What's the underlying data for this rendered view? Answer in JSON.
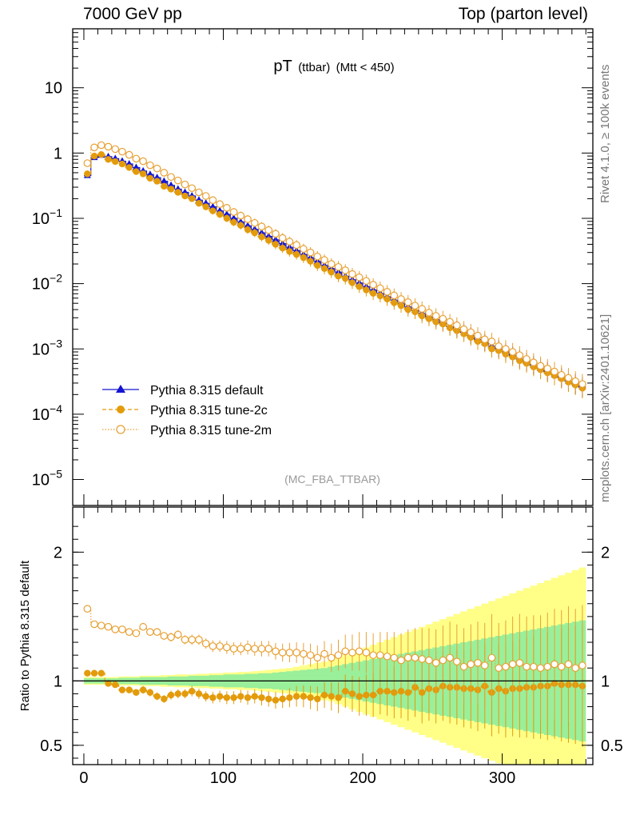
{
  "header": {
    "left": "7000 GeV pp",
    "right": "Top (parton level)"
  },
  "side_labels": {
    "rivet": "Rivet 4.1.0, ≥ 100k events",
    "mcplots": "mcplots.cern.ch [arXiv:2401.10621]"
  },
  "colors": {
    "default": "#1414d2",
    "tune2c": "#e39b0b",
    "tune2m": "#e7a135",
    "band_yellow": "#ffff88",
    "band_green": "#9aef9a"
  },
  "chart_data": [
    {
      "type": "line",
      "panel": "main",
      "title": "pT",
      "title_sub": "(ttbar)",
      "title_cut": "(Mtt < 450)",
      "watermark": "(MC_FBA_TTBAR)",
      "xlabel": "",
      "ylabel": "",
      "xlim": [
        -8,
        365
      ],
      "ylim": [
        4e-06,
        80
      ],
      "yscale": "log",
      "ytick_values": [
        1e-05,
        0.0001,
        0.001,
        0.01,
        0.1,
        1,
        10
      ],
      "ytick_labels": [
        {
          "base": "10",
          "exp": "−5"
        },
        {
          "base": "10",
          "exp": "−4"
        },
        {
          "base": "10",
          "exp": "−3"
        },
        {
          "base": "10",
          "exp": "−2"
        },
        {
          "base": "10",
          "exp": "−1"
        },
        {
          "base": "1",
          "exp": ""
        },
        {
          "base": "10",
          "exp": ""
        }
      ],
      "legend": [
        {
          "label": "Pythia 8.315 default",
          "style": "triangle-solid"
        },
        {
          "label": "Pythia 8.315 tune-2c",
          "style": "circle-dashed"
        },
        {
          "label": "Pythia 8.315 tune-2m",
          "style": "open-circle-dotted"
        }
      ],
      "x": [
        2.5,
        7.5,
        12.5,
        17.5,
        22.5,
        27.5,
        32.5,
        37.5,
        42.5,
        47.5,
        52.5,
        57.5,
        62.5,
        67.5,
        72.5,
        77.5,
        82.5,
        87.5,
        92.5,
        97.5,
        102.5,
        107.5,
        112.5,
        117.5,
        122.5,
        127.5,
        132.5,
        137.5,
        142.5,
        147.5,
        152.5,
        157.5,
        162.5,
        167.5,
        172.5,
        177.5,
        182.5,
        187.5,
        192.5,
        197.5,
        202.5,
        207.5,
        212.5,
        217.5,
        222.5,
        227.5,
        232.5,
        237.5,
        242.5,
        247.5,
        252.5,
        257.5,
        262.5,
        267.5,
        272.5,
        277.5,
        282.5,
        287.5,
        292.5,
        297.5,
        302.5,
        307.5,
        312.5,
        317.5,
        322.5,
        327.5,
        332.5,
        337.5,
        342.5,
        347.5,
        352.5,
        357.5
      ],
      "series": [
        {
          "name": "Pythia 8.315 default",
          "values": [
            0.45,
            0.85,
            0.92,
            0.88,
            0.82,
            0.75,
            0.68,
            0.6,
            0.53,
            0.47,
            0.42,
            0.37,
            0.32,
            0.28,
            0.25,
            0.22,
            0.19,
            0.17,
            0.15,
            0.13,
            0.115,
            0.1,
            0.088,
            0.077,
            0.068,
            0.06,
            0.053,
            0.047,
            0.041,
            0.036,
            0.032,
            0.028,
            0.025,
            0.022,
            0.019,
            0.017,
            0.015,
            0.013,
            0.0115,
            0.0102,
            0.009,
            0.008,
            0.0071,
            0.0063,
            0.0056,
            0.005,
            0.0044,
            0.0039,
            0.0035,
            0.0031,
            0.0028,
            0.0025,
            0.0022,
            0.002,
            0.0018,
            0.0016,
            0.0014,
            0.00125,
            0.0011,
            0.001,
            0.0009,
            0.0008,
            0.0007,
            0.00063,
            0.00056,
            0.0005,
            0.00045,
            0.0004,
            0.00036,
            0.00032,
            0.00029,
            0.00026
          ]
        },
        {
          "name": "Pythia 8.315 tune-2c",
          "values": [
            0.48,
            0.9,
            0.95,
            0.8,
            0.74,
            0.68,
            0.6,
            0.52,
            0.48,
            0.41,
            0.37,
            0.31,
            0.28,
            0.25,
            0.22,
            0.2,
            0.17,
            0.15,
            0.13,
            0.115,
            0.1,
            0.087,
            0.078,
            0.067,
            0.06,
            0.052,
            0.046,
            0.04,
            0.035,
            0.031,
            0.028,
            0.025,
            0.022,
            0.019,
            0.017,
            0.015,
            0.013,
            0.012,
            0.0103,
            0.009,
            0.008,
            0.0071,
            0.0065,
            0.0058,
            0.0051,
            0.0046,
            0.004,
            0.0037,
            0.0032,
            0.0029,
            0.0026,
            0.0024,
            0.0021,
            0.0019,
            0.0017,
            0.0015,
            0.0013,
            0.0012,
            0.001,
            0.00094,
            0.00083,
            0.00075,
            0.00066,
            0.0006,
            0.00053,
            0.00048,
            0.00043,
            0.00039,
            0.00035,
            0.00031,
            0.00028,
            0.00025
          ]
        },
        {
          "name": "Pythia 8.315 tune-2m",
          "values": [
            0.7,
            1.22,
            1.32,
            1.25,
            1.15,
            1.05,
            0.94,
            0.82,
            0.75,
            0.65,
            0.58,
            0.5,
            0.43,
            0.38,
            0.33,
            0.29,
            0.25,
            0.22,
            0.19,
            0.165,
            0.145,
            0.125,
            0.11,
            0.097,
            0.085,
            0.075,
            0.066,
            0.058,
            0.05,
            0.044,
            0.039,
            0.034,
            0.03,
            0.026,
            0.023,
            0.02,
            0.018,
            0.016,
            0.014,
            0.0125,
            0.011,
            0.0096,
            0.0085,
            0.0075,
            0.0066,
            0.0058,
            0.0052,
            0.0046,
            0.0041,
            0.0036,
            0.0032,
            0.0029,
            0.0026,
            0.0023,
            0.002,
            0.0018,
            0.0016,
            0.0014,
            0.0013,
            0.0011,
            0.001,
            0.0009,
            0.0008,
            0.0007,
            0.00062,
            0.00055,
            0.0005,
            0.00045,
            0.0004,
            0.00036,
            0.00032,
            0.00029
          ]
        }
      ]
    },
    {
      "type": "line",
      "panel": "ratio",
      "ylabel": "Ratio to Pythia 8.315 default",
      "xlabel": "",
      "xlim": [
        -8,
        365
      ],
      "ylim": [
        0.35,
        2.35
      ],
      "xticks": [
        0,
        100,
        200,
        300
      ],
      "yticks": [
        0.5,
        1,
        2
      ],
      "reference": 1,
      "x": [
        2.5,
        7.5,
        12.5,
        17.5,
        22.5,
        27.5,
        32.5,
        37.5,
        42.5,
        47.5,
        52.5,
        57.5,
        62.5,
        67.5,
        72.5,
        77.5,
        82.5,
        87.5,
        92.5,
        97.5,
        102.5,
        107.5,
        112.5,
        117.5,
        122.5,
        127.5,
        132.5,
        137.5,
        142.5,
        147.5,
        152.5,
        157.5,
        162.5,
        167.5,
        172.5,
        177.5,
        182.5,
        187.5,
        192.5,
        197.5,
        202.5,
        207.5,
        212.5,
        217.5,
        222.5,
        227.5,
        232.5,
        237.5,
        242.5,
        247.5,
        252.5,
        257.5,
        262.5,
        267.5,
        272.5,
        277.5,
        282.5,
        287.5,
        292.5,
        297.5,
        302.5,
        307.5,
        312.5,
        317.5,
        322.5,
        327.5,
        332.5,
        337.5,
        342.5,
        347.5,
        352.5,
        357.5
      ],
      "band_halfwidth_yellow": [
        0.03,
        0.03,
        0.03,
        0.03,
        0.03,
        0.035,
        0.035,
        0.035,
        0.04,
        0.04,
        0.04,
        0.045,
        0.045,
        0.05,
        0.05,
        0.05,
        0.055,
        0.055,
        0.06,
        0.06,
        0.065,
        0.065,
        0.07,
        0.07,
        0.075,
        0.08,
        0.085,
        0.09,
        0.095,
        0.1,
        0.11,
        0.12,
        0.13,
        0.14,
        0.15,
        0.16,
        0.18,
        0.2,
        0.22,
        0.24,
        0.26,
        0.28,
        0.3,
        0.32,
        0.34,
        0.36,
        0.38,
        0.4,
        0.42,
        0.44,
        0.46,
        0.48,
        0.5,
        0.52,
        0.54,
        0.56,
        0.58,
        0.6,
        0.62,
        0.64,
        0.66,
        0.68,
        0.7,
        0.72,
        0.74,
        0.76,
        0.78,
        0.8,
        0.82,
        0.84,
        0.86,
        0.88
      ],
      "band_halfwidth_green": [
        0.02,
        0.02,
        0.02,
        0.02,
        0.02,
        0.025,
        0.025,
        0.025,
        0.03,
        0.03,
        0.03,
        0.03,
        0.035,
        0.035,
        0.035,
        0.04,
        0.04,
        0.04,
        0.045,
        0.045,
        0.05,
        0.05,
        0.05,
        0.055,
        0.055,
        0.06,
        0.06,
        0.065,
        0.07,
        0.075,
        0.08,
        0.085,
        0.09,
        0.095,
        0.1,
        0.11,
        0.12,
        0.13,
        0.14,
        0.15,
        0.16,
        0.17,
        0.18,
        0.19,
        0.2,
        0.21,
        0.22,
        0.23,
        0.24,
        0.25,
        0.26,
        0.27,
        0.28,
        0.29,
        0.3,
        0.31,
        0.32,
        0.33,
        0.34,
        0.35,
        0.36,
        0.37,
        0.38,
        0.39,
        0.4,
        0.41,
        0.42,
        0.43,
        0.44,
        0.45,
        0.46,
        0.47
      ],
      "series": [
        {
          "name": "Pythia 8.315 tune-2c",
          "values": [
            1.06,
            1.06,
            1.06,
            0.98,
            0.97,
            0.93,
            0.93,
            0.91,
            0.93,
            0.91,
            0.88,
            0.86,
            0.89,
            0.9,
            0.9,
            0.92,
            0.9,
            0.88,
            0.87,
            0.88,
            0.87,
            0.87,
            0.88,
            0.87,
            0.88,
            0.87,
            0.86,
            0.85,
            0.86,
            0.87,
            0.88,
            0.88,
            0.87,
            0.86,
            0.89,
            0.88,
            0.87,
            0.92,
            0.9,
            0.88,
            0.89,
            0.89,
            0.92,
            0.92,
            0.91,
            0.92,
            0.91,
            0.95,
            0.91,
            0.94,
            0.93,
            0.96,
            0.95,
            0.95,
            0.94,
            0.94,
            0.93,
            0.96,
            0.91,
            0.94,
            0.92,
            0.94,
            0.94,
            0.95,
            0.95,
            0.96,
            0.96,
            0.98,
            0.97,
            0.97,
            0.97,
            0.96
          ]
        },
        {
          "name": "Pythia 8.315 tune-2m",
          "values": [
            1.56,
            1.44,
            1.43,
            1.42,
            1.4,
            1.4,
            1.38,
            1.37,
            1.42,
            1.38,
            1.38,
            1.35,
            1.34,
            1.36,
            1.32,
            1.32,
            1.32,
            1.29,
            1.27,
            1.27,
            1.26,
            1.25,
            1.25,
            1.26,
            1.25,
            1.25,
            1.25,
            1.23,
            1.22,
            1.22,
            1.22,
            1.21,
            1.2,
            1.18,
            1.21,
            1.18,
            1.2,
            1.23,
            1.22,
            1.23,
            1.22,
            1.2,
            1.2,
            1.19,
            1.18,
            1.16,
            1.18,
            1.18,
            1.17,
            1.16,
            1.14,
            1.16,
            1.18,
            1.15,
            1.11,
            1.13,
            1.14,
            1.12,
            1.18,
            1.1,
            1.11,
            1.13,
            1.14,
            1.11,
            1.11,
            1.1,
            1.11,
            1.13,
            1.11,
            1.13,
            1.1,
            1.12
          ]
        }
      ]
    }
  ]
}
